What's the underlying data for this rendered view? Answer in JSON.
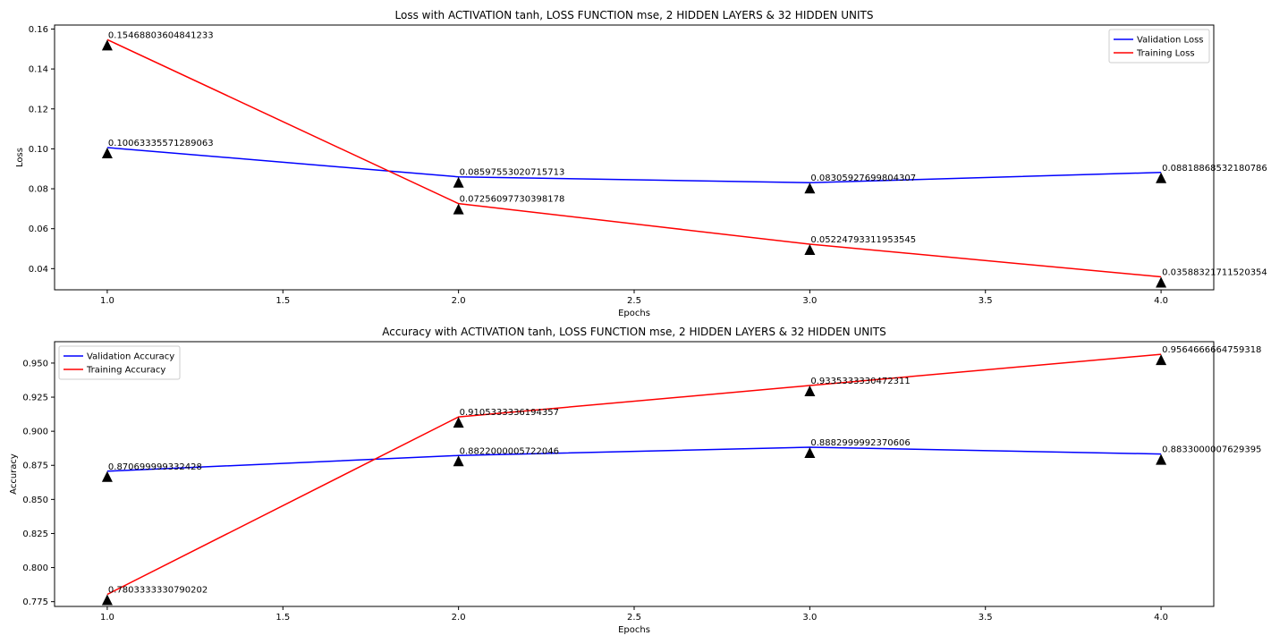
{
  "chart_data": [
    {
      "type": "line",
      "title": "Loss with ACTIVATION tanh, LOSS FUNCTION mse, 2 HIDDEN LAYERS & 32 HIDDEN UNITS",
      "xlabel": "Epochs",
      "ylabel": "Loss",
      "x": [
        1,
        2,
        3,
        4
      ],
      "xlim": [
        0.85,
        4.15
      ],
      "ylim": [
        0.0294,
        0.162
      ],
      "xticks": [
        1.0,
        1.5,
        2.0,
        2.5,
        3.0,
        3.5,
        4.0
      ],
      "xtick_labels": [
        "1.0",
        "1.5",
        "2.0",
        "2.5",
        "3.0",
        "3.5",
        "4.0"
      ],
      "yticks": [
        0.04,
        0.06,
        0.08,
        0.1,
        0.12,
        0.14,
        0.16
      ],
      "ytick_labels": [
        "0.04",
        "0.06",
        "0.08",
        "0.10",
        "0.12",
        "0.14",
        "0.16"
      ],
      "legend_position": "top-right",
      "grid": false,
      "series": [
        {
          "name": "Validation Loss",
          "color": "#0000ff",
          "values": [
            0.10063335571289063,
            0.08597553020715713,
            0.08305927699804307,
            0.08818868532180786
          ],
          "labels": [
            "0.10063335571289063",
            "0.08597553020715713",
            "0.08305927699804307",
            "0.08818868532180786"
          ]
        },
        {
          "name": "Training Loss",
          "color": "#ff0000",
          "values": [
            0.15468803604841233,
            0.07256097730398178,
            0.05224793311953545,
            0.03588321711520354
          ],
          "labels": [
            "0.15468803604841233",
            "0.07256097730398178",
            "0.05224793311953545",
            "0.03588321711520354"
          ]
        }
      ]
    },
    {
      "type": "line",
      "title": "Accuracy with ACTIVATION tanh, LOSS FUNCTION mse, 2 HIDDEN LAYERS & 32 HIDDEN UNITS",
      "xlabel": "Epochs",
      "ylabel": "Accuracy",
      "x": [
        1,
        2,
        3,
        4
      ],
      "xlim": [
        0.85,
        4.15
      ],
      "ylim": [
        0.7715,
        0.9657
      ],
      "xticks": [
        1.0,
        1.5,
        2.0,
        2.5,
        3.0,
        3.5,
        4.0
      ],
      "xtick_labels": [
        "1.0",
        "1.5",
        "2.0",
        "2.5",
        "3.0",
        "3.5",
        "4.0"
      ],
      "yticks": [
        0.775,
        0.8,
        0.825,
        0.85,
        0.875,
        0.9,
        0.925,
        0.95
      ],
      "ytick_labels": [
        "0.775",
        "0.800",
        "0.825",
        "0.850",
        "0.875",
        "0.900",
        "0.925",
        "0.950"
      ],
      "legend_position": "top-left",
      "grid": false,
      "series": [
        {
          "name": "Validation Accuracy",
          "color": "#0000ff",
          "values": [
            0.870699999332428,
            0.8822000005722046,
            0.8882999992370606,
            0.8833000007629395
          ],
          "labels": [
            "0.870699999332428",
            "0.8822000005722046",
            "0.8882999992370606",
            "0.8833000007629395"
          ]
        },
        {
          "name": "Training Accuracy",
          "color": "#ff0000",
          "values": [
            0.7803333330790202,
            0.9105333336194357,
            0.9335333330472311,
            0.9564666664759318
          ],
          "labels": [
            "0.7803333330790202",
            "0.9105333336194357",
            "0.9335333330472311",
            "0.9564666664759318"
          ]
        }
      ]
    }
  ]
}
